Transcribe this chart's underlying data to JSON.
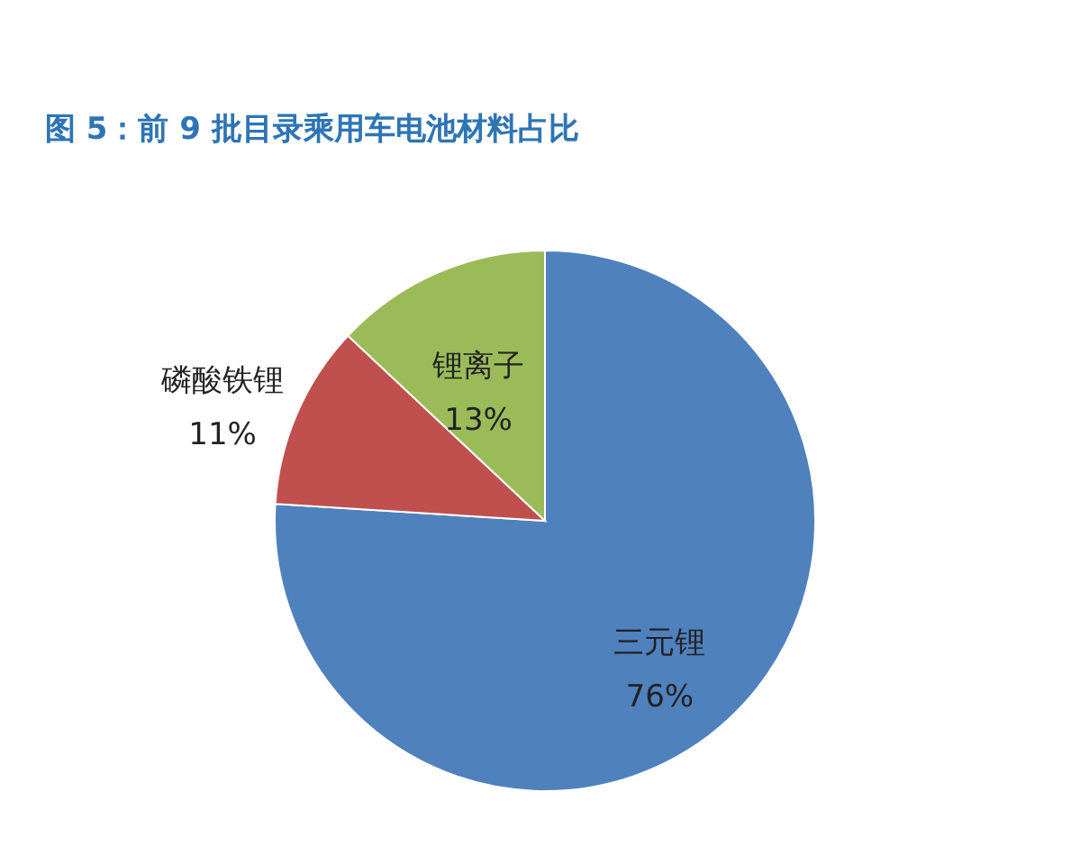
{
  "chart_data": {
    "type": "pie",
    "title": "图 5：前 9 批目录乘用车电池材料占比",
    "categories": [
      "三元锂",
      "磷酸铁锂",
      "锂离子"
    ],
    "values": [
      76,
      11,
      13
    ],
    "colors": [
      "#4f81bd",
      "#c0504d",
      "#9bbb59"
    ],
    "value_labels": [
      "76%",
      "11%",
      "13%"
    ],
    "legend": false
  }
}
